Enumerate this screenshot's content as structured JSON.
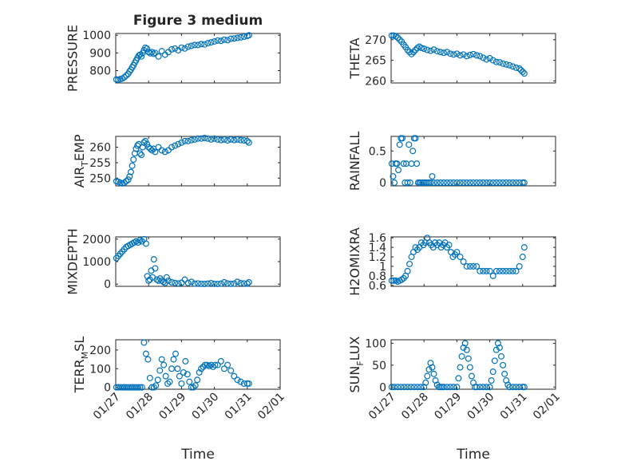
{
  "figure": {
    "title": "Figure 3 medium"
  },
  "chart_data": [
    {
      "id": "pressure",
      "type": "scatter",
      "ylabel": "PRESSURE",
      "ylabel_sub": "",
      "ylim": [
        730,
        1010
      ],
      "yticks": [
        800,
        900,
        1000
      ],
      "yticklabels": [
        "800",
        "900",
        "1000"
      ],
      "xlim": [
        0,
        5
      ],
      "xticks": [
        0,
        1,
        2,
        3,
        4,
        5
      ],
      "xticklabels": [
        "01/27",
        "01/28",
        "01/29",
        "01/30",
        "01/31",
        "02/01"
      ],
      "show_xticklabels": false,
      "xlabel": "",
      "title": "Figure 3 medium",
      "grid": true,
      "minor_grid": true,
      "color": "#0072BD",
      "x": [
        0.02,
        0.08,
        0.14,
        0.2,
        0.26,
        0.32,
        0.38,
        0.42,
        0.46,
        0.5,
        0.54,
        0.58,
        0.62,
        0.66,
        0.7,
        0.74,
        0.78,
        0.82,
        0.86,
        0.9,
        0.95,
        1.0,
        1.05,
        1.1,
        1.15,
        1.2,
        1.3,
        1.4,
        1.5,
        1.6,
        1.7,
        1.8,
        1.9,
        2.0,
        2.1,
        2.2,
        2.3,
        2.4,
        2.5,
        2.6,
        2.7,
        2.8,
        2.9,
        3.0,
        3.1,
        3.2,
        3.3,
        3.4,
        3.5,
        3.6,
        3.7,
        3.8,
        3.9,
        4.0,
        4.05
      ],
      "y": [
        750,
        748,
        752,
        755,
        762,
        772,
        782,
        795,
        805,
        818,
        830,
        845,
        858,
        872,
        885,
        890,
        880,
        900,
        915,
        930,
        925,
        905,
        898,
        905,
        895,
        900,
        880,
        910,
        890,
        905,
        920,
        925,
        915,
        930,
        925,
        935,
        940,
        945,
        945,
        950,
        948,
        955,
        960,
        965,
        970,
        968,
        975,
        972,
        980,
        982,
        985,
        988,
        992,
        996,
        1000
      ]
    },
    {
      "id": "theta",
      "type": "scatter",
      "ylabel": "THETA",
      "ylabel_sub": "",
      "ylim": [
        259.5,
        271.5
      ],
      "yticks": [
        260,
        265,
        270
      ],
      "yticklabels": [
        "260",
        "265",
        "270"
      ],
      "xlim": [
        0,
        5
      ],
      "xticks": [
        0,
        1,
        2,
        3,
        4,
        5
      ],
      "xticklabels": [
        "01/27",
        "01/28",
        "01/29",
        "01/30",
        "01/31",
        "02/01"
      ],
      "show_xticklabels": false,
      "xlabel": "",
      "title": "",
      "grid": true,
      "minor_grid": true,
      "color": "#0072BD",
      "x": [
        0.02,
        0.08,
        0.14,
        0.2,
        0.26,
        0.32,
        0.38,
        0.44,
        0.5,
        0.56,
        0.62,
        0.68,
        0.74,
        0.8,
        0.86,
        0.92,
        1.0,
        1.1,
        1.2,
        1.3,
        1.4,
        1.5,
        1.6,
        1.7,
        1.8,
        1.9,
        2.0,
        2.1,
        2.2,
        2.3,
        2.4,
        2.5,
        2.6,
        2.7,
        2.8,
        2.9,
        3.0,
        3.1,
        3.2,
        3.3,
        3.4,
        3.5,
        3.6,
        3.7,
        3.8,
        3.9,
        3.95,
        4.0,
        4.05
      ],
      "y": [
        271,
        271,
        270.8,
        270.5,
        270,
        269.5,
        268.8,
        268.2,
        267.5,
        267.0,
        266.5,
        267.0,
        267.5,
        268.0,
        268.3,
        268.0,
        267.8,
        267.5,
        267.3,
        267.6,
        267.2,
        267.0,
        266.8,
        267.0,
        266.6,
        266.4,
        266.6,
        266.2,
        266.4,
        266.0,
        266.3,
        266.5,
        266.2,
        266.0,
        265.6,
        265.2,
        265.5,
        265.0,
        264.6,
        264.5,
        264.2,
        264.0,
        263.8,
        263.5,
        263.2,
        263.0,
        262.6,
        262.2,
        261.8
      ]
    },
    {
      "id": "air_temp",
      "type": "scatter",
      "ylabel": "AIR",
      "ylabel_sub": "T",
      "ylabel_suffix": "EMP",
      "ylim": [
        247.5,
        263.5
      ],
      "yticks": [
        250,
        255,
        260
      ],
      "yticklabels": [
        "250",
        "255",
        "260"
      ],
      "xlim": [
        0,
        5
      ],
      "xticks": [
        0,
        1,
        2,
        3,
        4,
        5
      ],
      "xticklabels": [
        "01/27",
        "01/28",
        "01/29",
        "01/30",
        "01/31",
        "02/01"
      ],
      "show_xticklabels": false,
      "xlabel": "",
      "title": "",
      "grid": true,
      "minor_grid": true,
      "color": "#0072BD",
      "x": [
        0.02,
        0.08,
        0.14,
        0.2,
        0.26,
        0.32,
        0.38,
        0.42,
        0.46,
        0.5,
        0.54,
        0.58,
        0.62,
        0.66,
        0.7,
        0.74,
        0.78,
        0.82,
        0.86,
        0.9,
        0.95,
        1.0,
        1.05,
        1.1,
        1.15,
        1.2,
        1.3,
        1.4,
        1.5,
        1.6,
        1.7,
        1.8,
        1.9,
        2.0,
        2.1,
        2.2,
        2.3,
        2.4,
        2.5,
        2.6,
        2.7,
        2.8,
        2.9,
        3.0,
        3.1,
        3.2,
        3.3,
        3.4,
        3.5,
        3.6,
        3.7,
        3.8,
        3.9,
        4.0,
        4.05
      ],
      "y": [
        249,
        248.8,
        248.5,
        248.3,
        248.5,
        249,
        249.5,
        250.5,
        252,
        254,
        256,
        258,
        259.5,
        260.5,
        261,
        258,
        257.5,
        260,
        261.5,
        262,
        261,
        260,
        259.5,
        259,
        259.5,
        258.5,
        260,
        259,
        258.5,
        259,
        260,
        260.5,
        261,
        261.5,
        262,
        262,
        262.3,
        262.5,
        262.8,
        262.8,
        263,
        262.8,
        262.5,
        262.8,
        262.5,
        262.3,
        262.5,
        262.2,
        262.5,
        262.3,
        262.5,
        262.3,
        262.2,
        262,
        261.5
      ]
    },
    {
      "id": "rainfall",
      "type": "scatter",
      "ylabel": "RAINFALL",
      "ylabel_sub": "",
      "ylim": [
        -0.05,
        0.73
      ],
      "yticks": [
        0,
        0.5
      ],
      "yticklabels": [
        "0",
        "0.5"
      ],
      "xlim": [
        0,
        5
      ],
      "xticks": [
        0,
        1,
        2,
        3,
        4,
        5
      ],
      "xticklabels": [
        "01/27",
        "01/28",
        "01/29",
        "01/30",
        "01/31",
        "02/01"
      ],
      "show_xticklabels": false,
      "xlabel": "",
      "title": "",
      "grid": true,
      "minor_grid": true,
      "color": "#0072BD",
      "x": [
        0.02,
        0.06,
        0.1,
        0.14,
        0.18,
        0.22,
        0.26,
        0.3,
        0.34,
        0.38,
        0.42,
        0.46,
        0.5,
        0.54,
        0.58,
        0.62,
        0.66,
        0.7,
        0.74,
        0.78,
        0.82,
        0.86,
        0.9,
        0.95,
        1.0,
        1.05,
        1.1,
        1.15,
        1.2,
        1.25,
        1.3,
        1.4,
        1.5,
        1.6,
        1.7,
        1.8,
        1.9,
        2.0,
        2.1,
        2.2,
        2.3,
        2.4,
        2.5,
        2.6,
        2.7,
        2.8,
        2.9,
        3.0,
        3.1,
        3.2,
        3.3,
        3.4,
        3.5,
        3.6,
        3.7,
        3.8,
        3.9,
        4.0,
        4.05
      ],
      "y": [
        0.3,
        0.1,
        0,
        0.3,
        0.3,
        0.2,
        0.6,
        0.7,
        0.7,
        0.3,
        0,
        0.3,
        0,
        0.6,
        0,
        0.3,
        0.5,
        0.7,
        0.7,
        0.3,
        0,
        0,
        0,
        0,
        0,
        0,
        0,
        0,
        0,
        0.1,
        0,
        0,
        0,
        0,
        0,
        0,
        0,
        0,
        0,
        0,
        0,
        0,
        0,
        0,
        0,
        0,
        0,
        0,
        0,
        0,
        0,
        0,
        0,
        0,
        0,
        0,
        0,
        0,
        0
      ]
    },
    {
      "id": "mixdepth",
      "type": "scatter",
      "ylabel": "MIXDEPTH",
      "ylabel_sub": "",
      "ylim": [
        -100,
        2100
      ],
      "yticks": [
        0,
        1000,
        2000
      ],
      "yticklabels": [
        "0",
        "1000",
        "2000"
      ],
      "xlim": [
        0,
        5
      ],
      "xticks": [
        0,
        1,
        2,
        3,
        4,
        5
      ],
      "xticklabels": [
        "01/27",
        "01/28",
        "01/29",
        "01/30",
        "01/31",
        "02/01"
      ],
      "show_xticklabels": false,
      "xlabel": "",
      "title": "",
      "grid": true,
      "minor_grid": true,
      "color": "#0072BD",
      "x": [
        0.02,
        0.08,
        0.14,
        0.2,
        0.26,
        0.32,
        0.38,
        0.44,
        0.5,
        0.56,
        0.62,
        0.68,
        0.74,
        0.8,
        0.86,
        0.92,
        0.96,
        1.0,
        1.04,
        1.08,
        1.12,
        1.16,
        1.2,
        1.25,
        1.3,
        1.35,
        1.4,
        1.45,
        1.5,
        1.55,
        1.6,
        1.7,
        1.8,
        1.9,
        2.0,
        2.1,
        2.2,
        2.3,
        2.4,
        2.5,
        2.6,
        2.7,
        2.8,
        2.9,
        3.0,
        3.1,
        3.2,
        3.3,
        3.4,
        3.5,
        3.6,
        3.7,
        3.8,
        3.9,
        4.0,
        4.05
      ],
      "y": [
        1150,
        1250,
        1350,
        1450,
        1550,
        1650,
        1700,
        1750,
        1800,
        1850,
        1900,
        1850,
        1950,
        1900,
        2000,
        1800,
        350,
        150,
        200,
        600,
        300,
        1100,
        700,
        200,
        150,
        250,
        150,
        100,
        50,
        300,
        150,
        80,
        50,
        30,
        60,
        200,
        50,
        100,
        20,
        30,
        10,
        5,
        20,
        40,
        10,
        5,
        20,
        80,
        30,
        10,
        20,
        100,
        40,
        30,
        20,
        80
      ]
    },
    {
      "id": "h2omixra",
      "type": "scatter",
      "ylabel": "H2OMIXRA",
      "ylabel_sub": "",
      "ylim": [
        0.58,
        1.62
      ],
      "yticks": [
        0.6,
        0.8,
        1,
        1.2,
        1.4,
        1.6
      ],
      "yticklabels": [
        "0.6",
        "0.8",
        "1",
        "1.2",
        "1.4",
        "1.6"
      ],
      "xlim": [
        0,
        5
      ],
      "xticks": [
        0,
        1,
        2,
        3,
        4,
        5
      ],
      "xticklabels": [
        "01/27",
        "01/28",
        "01/29",
        "01/30",
        "01/31",
        "02/01"
      ],
      "show_xticklabels": false,
      "xlabel": "",
      "title": "",
      "grid": true,
      "minor_grid": true,
      "color": "#0072BD",
      "x": [
        0.02,
        0.08,
        0.14,
        0.2,
        0.26,
        0.32,
        0.38,
        0.44,
        0.5,
        0.56,
        0.62,
        0.68,
        0.74,
        0.8,
        0.86,
        0.92,
        0.98,
        1.04,
        1.1,
        1.16,
        1.22,
        1.28,
        1.34,
        1.4,
        1.46,
        1.52,
        1.58,
        1.64,
        1.7,
        1.76,
        1.82,
        1.88,
        1.94,
        2.0,
        2.1,
        2.2,
        2.3,
        2.4,
        2.5,
        2.6,
        2.7,
        2.8,
        2.9,
        3.0,
        3.1,
        3.2,
        3.3,
        3.4,
        3.5,
        3.6,
        3.7,
        3.8,
        3.9,
        4.0,
        4.05
      ],
      "y": [
        0.7,
        0.7,
        0.7,
        0.68,
        0.7,
        0.72,
        0.75,
        0.8,
        0.9,
        1.05,
        1.2,
        1.3,
        1.4,
        1.35,
        1.4,
        1.5,
        1.45,
        1.5,
        1.6,
        1.5,
        1.45,
        1.4,
        1.5,
        1.45,
        1.5,
        1.4,
        1.45,
        1.5,
        1.4,
        1.45,
        1.3,
        1.2,
        1.25,
        1.3,
        1.2,
        1.1,
        1.0,
        1.0,
        1.0,
        1.0,
        0.9,
        0.9,
        0.9,
        0.9,
        0.8,
        0.9,
        0.9,
        0.9,
        0.9,
        0.9,
        0.9,
        0.9,
        1.0,
        1.2,
        1.4
      ]
    },
    {
      "id": "terr_msl",
      "type": "scatter",
      "ylabel": "TERR",
      "ylabel_sub": "M",
      "ylabel_suffix": "SL",
      "ylim": [
        -10,
        255
      ],
      "yticks": [
        0,
        100,
        200
      ],
      "yticklabels": [
        "0",
        "100",
        "200"
      ],
      "xlim": [
        0,
        5
      ],
      "xticks": [
        0,
        1,
        2,
        3,
        4,
        5
      ],
      "xticklabels": [
        "01/27",
        "01/28",
        "01/29",
        "01/30",
        "01/31",
        "02/01"
      ],
      "show_xticklabels": true,
      "xlabel": "Time",
      "title": "",
      "grid": true,
      "minor_grid": true,
      "color": "#0072BD",
      "x": [
        0.02,
        0.08,
        0.14,
        0.2,
        0.26,
        0.32,
        0.38,
        0.44,
        0.5,
        0.56,
        0.62,
        0.68,
        0.74,
        0.8,
        0.86,
        0.92,
        0.98,
        1.04,
        1.1,
        1.16,
        1.22,
        1.28,
        1.34,
        1.4,
        1.46,
        1.52,
        1.58,
        1.64,
        1.7,
        1.76,
        1.82,
        1.88,
        1.94,
        2.0,
        2.06,
        2.12,
        2.18,
        2.24,
        2.3,
        2.36,
        2.42,
        2.48,
        2.54,
        2.6,
        2.66,
        2.72,
        2.78,
        2.84,
        2.9,
        2.96,
        3.02,
        3.1,
        3.2,
        3.3,
        3.4,
        3.5,
        3.6,
        3.7,
        3.8,
        3.9,
        4.0,
        4.05
      ],
      "y": [
        0,
        0,
        0,
        0,
        0,
        0,
        0,
        0,
        0,
        0,
        0,
        0,
        0,
        0,
        240,
        180,
        150,
        50,
        0,
        0,
        10,
        40,
        90,
        150,
        120,
        60,
        20,
        30,
        100,
        150,
        180,
        100,
        60,
        20,
        80,
        140,
        70,
        30,
        0,
        0,
        10,
        40,
        80,
        100,
        110,
        120,
        120,
        115,
        120,
        110,
        120,
        120,
        140,
        100,
        120,
        90,
        60,
        40,
        30,
        20,
        20,
        20
      ]
    },
    {
      "id": "sun_flux",
      "type": "scatter",
      "ylabel": "SUN",
      "ylabel_sub": "F",
      "ylabel_suffix": "LUX",
      "ylim": [
        -5,
        108
      ],
      "yticks": [
        0,
        50,
        100
      ],
      "yticklabels": [
        "0",
        "50",
        "100"
      ],
      "xlim": [
        0,
        5
      ],
      "xticks": [
        0,
        1,
        2,
        3,
        4,
        5
      ],
      "xticklabels": [
        "01/27",
        "01/28",
        "01/29",
        "01/30",
        "01/31",
        "02/01"
      ],
      "show_xticklabels": true,
      "xlabel": "Time",
      "title": "",
      "grid": true,
      "minor_grid": true,
      "color": "#0072BD",
      "x": [
        0.02,
        0.1,
        0.2,
        0.3,
        0.4,
        0.5,
        0.6,
        0.7,
        0.8,
        0.9,
        1.0,
        1.05,
        1.1,
        1.15,
        1.2,
        1.25,
        1.3,
        1.35,
        1.4,
        1.45,
        1.5,
        1.55,
        1.6,
        1.7,
        1.8,
        1.9,
        2.0,
        2.05,
        2.1,
        2.15,
        2.2,
        2.25,
        2.3,
        2.35,
        2.4,
        2.45,
        2.5,
        2.55,
        2.6,
        2.7,
        2.8,
        2.9,
        3.0,
        3.05,
        3.1,
        3.15,
        3.2,
        3.25,
        3.3,
        3.35,
        3.4,
        3.45,
        3.5,
        3.55,
        3.6,
        3.7,
        3.8,
        3.9,
        4.0,
        4.05
      ],
      "y": [
        0,
        0,
        0,
        0,
        0,
        0,
        0,
        0,
        0,
        0,
        0,
        10,
        25,
        40,
        55,
        45,
        30,
        15,
        5,
        0,
        0,
        0,
        0,
        0,
        0,
        0,
        0,
        20,
        45,
        70,
        90,
        100,
        85,
        65,
        45,
        25,
        10,
        0,
        0,
        0,
        0,
        0,
        0,
        15,
        35,
        60,
        85,
        100,
        90,
        70,
        50,
        30,
        15,
        5,
        0,
        0,
        0,
        0,
        0,
        0
      ]
    }
  ]
}
